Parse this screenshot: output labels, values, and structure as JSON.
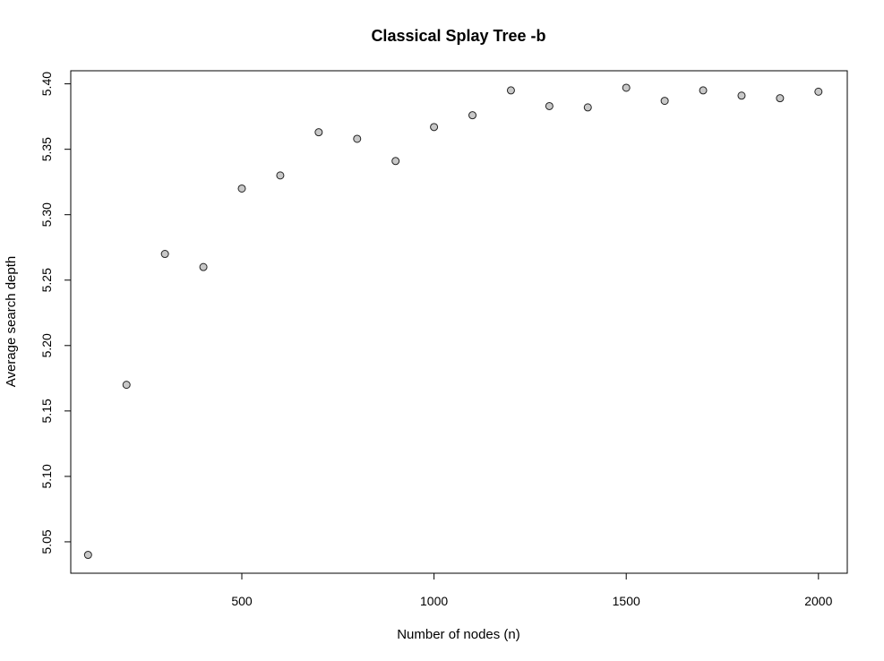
{
  "chart_data": {
    "type": "scatter",
    "title": "Classical Splay Tree -b",
    "xlabel": "Number of nodes (n)",
    "ylabel": "Average search depth",
    "xlim": [
      55,
      2075
    ],
    "ylim": [
      5.026,
      5.41
    ],
    "xticks": [
      500,
      1000,
      1500,
      2000
    ],
    "xtick_labels": [
      "500",
      "1000",
      "1500",
      "2000"
    ],
    "yticks": [
      5.05,
      5.1,
      5.15,
      5.2,
      5.25,
      5.3,
      5.35,
      5.4
    ],
    "ytick_labels": [
      "5.05",
      "5.10",
      "5.15",
      "5.20",
      "5.25",
      "5.30",
      "5.35",
      "5.40"
    ],
    "grid": false,
    "x": [
      100,
      200,
      300,
      400,
      500,
      600,
      700,
      800,
      900,
      1000,
      1100,
      1200,
      1300,
      1400,
      1500,
      1600,
      1700,
      1800,
      1900,
      2000
    ],
    "y": [
      5.04,
      5.17,
      5.27,
      5.26,
      5.32,
      5.33,
      5.363,
      5.358,
      5.341,
      5.367,
      5.376,
      5.395,
      5.383,
      5.382,
      5.397,
      5.387,
      5.395,
      5.391,
      5.389,
      5.394
    ]
  }
}
